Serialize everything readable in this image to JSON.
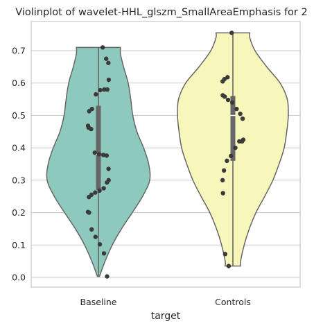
{
  "chart_data": {
    "type": "violin",
    "title": "Violinplot of wavelet-HHL_glszm_SmallAreaEmphasis for 2",
    "xlabel": "target",
    "ylabel": "",
    "ylim": [
      -0.03,
      0.79
    ],
    "yticks": [
      "0.0",
      "0.1",
      "0.2",
      "0.3",
      "0.4",
      "0.5",
      "0.6",
      "0.7"
    ],
    "grid": true,
    "categories": [
      "Baseline",
      "Controls"
    ],
    "series": [
      {
        "category": "Baseline",
        "color": "#8dc9bc",
        "min": 0.003,
        "max": 0.71,
        "q1": 0.27,
        "median": 0.38,
        "q3": 0.53,
        "density": [
          [
            0.003,
            0.02
          ],
          [
            0.05,
            0.13
          ],
          [
            0.1,
            0.27
          ],
          [
            0.15,
            0.45
          ],
          [
            0.2,
            0.66
          ],
          [
            0.25,
            0.86
          ],
          [
            0.3,
            1.0
          ],
          [
            0.35,
            0.98
          ],
          [
            0.4,
            0.88
          ],
          [
            0.45,
            0.75
          ],
          [
            0.5,
            0.67
          ],
          [
            0.55,
            0.63
          ],
          [
            0.6,
            0.58
          ],
          [
            0.65,
            0.49
          ],
          [
            0.69,
            0.43
          ],
          [
            0.71,
            0.43
          ]
        ],
        "points": [
          0.71,
          0.675,
          0.662,
          0.61,
          0.58,
          0.58,
          0.578,
          0.565,
          0.52,
          0.513,
          0.468,
          0.462,
          0.458,
          0.385,
          0.38,
          0.378,
          0.376,
          0.335,
          0.3,
          0.293,
          0.275,
          0.268,
          0.262,
          0.255,
          0.248,
          0.202,
          0.2,
          0.148,
          0.125,
          0.102,
          0.074,
          0.003
        ]
      },
      {
        "category": "Controls",
        "color": "#f7f6bb",
        "min": 0.035,
        "max": 0.755,
        "q1": 0.36,
        "median": 0.5,
        "q3": 0.56,
        "density": [
          [
            0.035,
            0.15
          ],
          [
            0.05,
            0.15
          ],
          [
            0.1,
            0.22
          ],
          [
            0.15,
            0.32
          ],
          [
            0.2,
            0.45
          ],
          [
            0.25,
            0.62
          ],
          [
            0.3,
            0.78
          ],
          [
            0.35,
            0.9
          ],
          [
            0.4,
            1.0
          ],
          [
            0.45,
            1.05
          ],
          [
            0.5,
            1.08
          ],
          [
            0.55,
            1.06
          ],
          [
            0.6,
            0.92
          ],
          [
            0.65,
            0.66
          ],
          [
            0.7,
            0.43
          ],
          [
            0.74,
            0.33
          ],
          [
            0.755,
            0.33
          ]
        ],
        "points": [
          0.755,
          0.618,
          0.612,
          0.605,
          0.562,
          0.558,
          0.548,
          0.54,
          0.52,
          0.505,
          0.49,
          0.425,
          0.42,
          0.42,
          0.4,
          0.375,
          0.36,
          0.33,
          0.3,
          0.26,
          0.072,
          0.035
        ]
      }
    ]
  }
}
